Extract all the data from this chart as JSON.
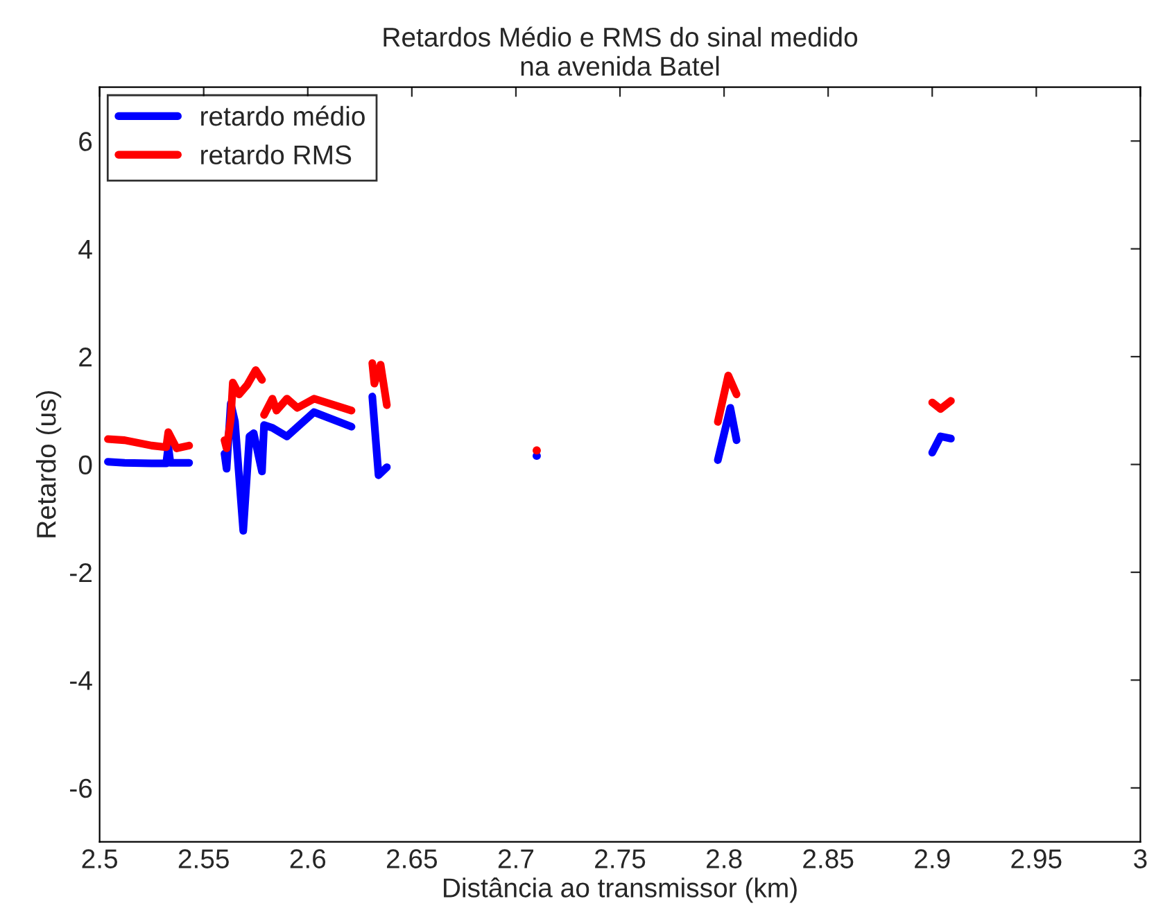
{
  "chart_data": {
    "type": "line",
    "title": "Retardos Médio e RMS do sinal medido\nna avenida Batel",
    "xlabel": "Distância ao transmissor (km)",
    "ylabel": "Retardo (us)",
    "series": [
      {
        "name": "retardo médio",
        "color": "#0000ff",
        "x": [
          2.504,
          2.512,
          2.525,
          2.532,
          2.533,
          2.534,
          2.537,
          2.543
        ],
        "values": [
          0.05,
          0.03,
          0.02,
          0.02,
          0.33,
          0.03,
          0.03,
          0.03
        ]
      },
      {
        "color": "#0000ff",
        "x": [
          2.56,
          2.561,
          2.563,
          2.565,
          2.569,
          2.572,
          2.574,
          2.578,
          2.579,
          2.583,
          2.59,
          2.603,
          2.621
        ],
        "values": [
          0.2,
          -0.08,
          1.13,
          0.8,
          -1.23,
          0.52,
          0.58,
          -0.13,
          0.73,
          0.68,
          0.52,
          0.97,
          0.7
        ]
      },
      {
        "color": "#0000ff",
        "x": [
          2.631,
          2.634,
          2.638
        ],
        "values": [
          1.26,
          -0.2,
          -0.05
        ]
      },
      {
        "color": "#0000ff",
        "x": [
          2.797,
          2.803,
          2.806
        ],
        "values": [
          0.08,
          1.05,
          0.45
        ]
      },
      {
        "color": "#0000ff",
        "x": [
          2.9,
          2.904,
          2.909
        ],
        "values": [
          0.22,
          0.52,
          0.48
        ]
      },
      {
        "type": "scatter",
        "color": "#0000ff",
        "x": [
          2.71
        ],
        "values": [
          0.16
        ]
      },
      {
        "name": "retardo RMS",
        "color": "#ff0000",
        "x": [
          2.504,
          2.512,
          2.525,
          2.532,
          2.533,
          2.537,
          2.543
        ],
        "values": [
          0.47,
          0.45,
          0.35,
          0.32,
          0.6,
          0.3,
          0.35
        ]
      },
      {
        "color": "#ff0000",
        "x": [
          2.56,
          2.561,
          2.563,
          2.564,
          2.567,
          2.571,
          2.575,
          2.578
        ],
        "values": [
          0.45,
          0.3,
          0.84,
          1.52,
          1.3,
          1.48,
          1.75,
          1.57
        ]
      },
      {
        "color": "#ff0000",
        "x": [
          2.579,
          2.583,
          2.585,
          2.59,
          2.595,
          2.603,
          2.621
        ],
        "values": [
          0.92,
          1.22,
          1.0,
          1.22,
          1.05,
          1.22,
          1.0
        ]
      },
      {
        "color": "#ff0000",
        "x": [
          2.631,
          2.632,
          2.635,
          2.638
        ],
        "values": [
          1.88,
          1.5,
          1.85,
          1.1
        ]
      },
      {
        "color": "#ff0000",
        "x": [
          2.797,
          2.802,
          2.806
        ],
        "values": [
          0.79,
          1.65,
          1.3
        ]
      },
      {
        "color": "#ff0000",
        "x": [
          2.9,
          2.904,
          2.909
        ],
        "values": [
          1.15,
          1.03,
          1.18
        ]
      },
      {
        "type": "scatter",
        "color": "#ff0000",
        "x": [
          2.71
        ],
        "values": [
          0.26
        ]
      }
    ],
    "xlim": [
      2.5,
      3
    ],
    "xticks": [
      2.5,
      2.55,
      2.6,
      2.65,
      2.7,
      2.75,
      2.8,
      2.85,
      2.9,
      2.95,
      3
    ],
    "ylim": [
      -7,
      7
    ],
    "yticks": [
      -6,
      -4,
      -2,
      0,
      2,
      4,
      6
    ],
    "grid": false,
    "legend": "top left",
    "line_style": "solid"
  }
}
